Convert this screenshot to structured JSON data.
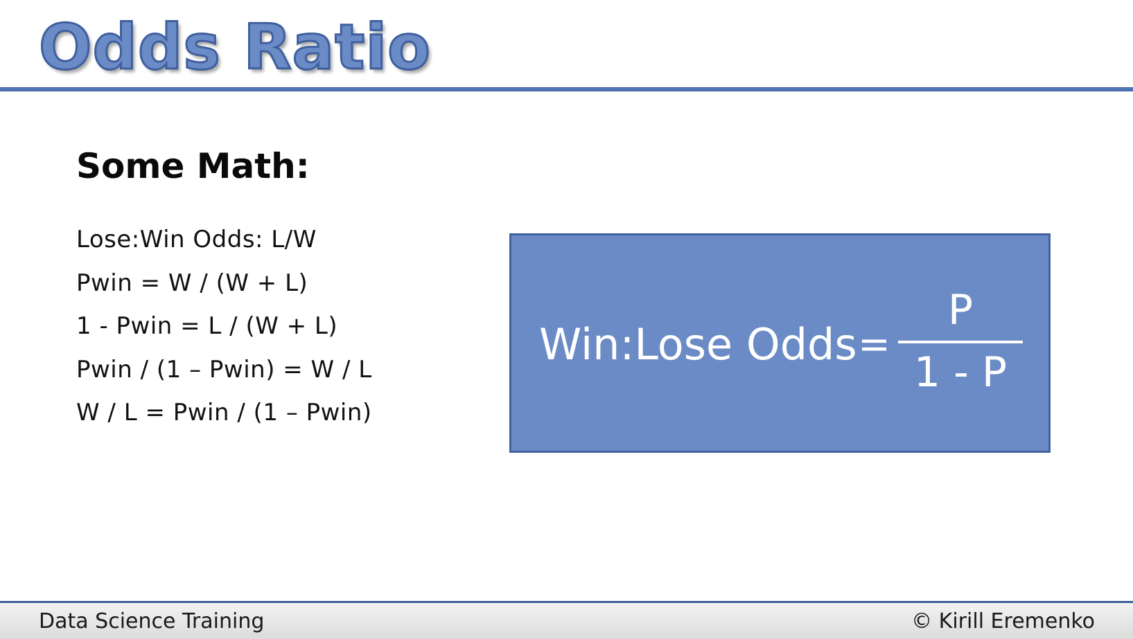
{
  "slide": {
    "title": "Odds Ratio",
    "heading": "Some Math:",
    "math_lines": [
      "Lose:Win Odds: L/W",
      "Pwin = W / (W + L)",
      "1 - Pwin = L / (W + L)",
      "Pwin / (1 – Pwin) = W / L",
      "W / L = Pwin / (1 – Pwin)"
    ],
    "formula": {
      "lhs": "Win:Lose Odds",
      "equals": "=",
      "numerator": "P",
      "denominator": "1 - P"
    }
  },
  "footer": {
    "left": "Data Science Training",
    "right": "© Kirill Eremenko"
  },
  "colors": {
    "accent_blue": "#6a8bc6",
    "rule_blue": "#4f73b5",
    "border_blue": "#42629f"
  }
}
